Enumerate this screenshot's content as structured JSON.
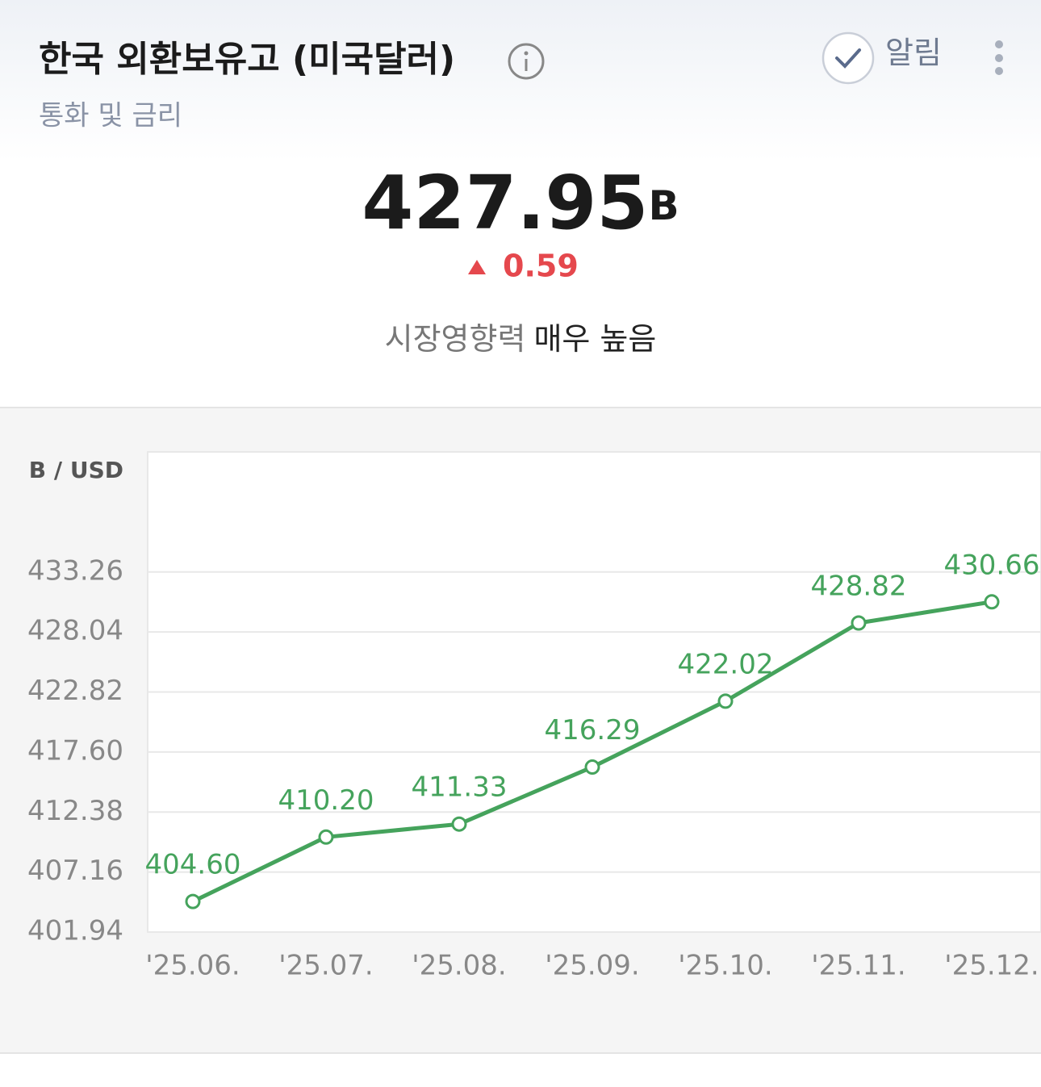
{
  "header": {
    "title": "한국 외환보유고 (미국달러)",
    "subtitle": "통화 및 금리",
    "alert": "알림"
  },
  "summary": {
    "value": 427.95,
    "unit": "B",
    "change": 0.59,
    "impact_label": "시장영향력",
    "impact_value": "매우 높음"
  },
  "chart_data": {
    "type": "line",
    "y_axis_label": "B / USD",
    "categories": [
      "'25.06.",
      "'25.07.",
      "'25.08.",
      "'25.09.",
      "'25.10.",
      "'25.11.",
      "'25.12."
    ],
    "values": [
      404.6,
      410.2,
      411.33,
      416.29,
      422.02,
      428.82,
      430.66
    ],
    "value_labels": [
      "404.60",
      "410.20",
      "411.33",
      "416.29",
      "422.02",
      "428.82",
      "430.66"
    ],
    "color": "#45a35c",
    "ylim": [
      401.94,
      443.7
    ],
    "yticks": [
      401.94,
      407.16,
      412.38,
      {
        "value": 417.6,
        "label": "417.60"
      },
      422.82,
      428.04,
      433.26
    ],
    "grid": true
  }
}
